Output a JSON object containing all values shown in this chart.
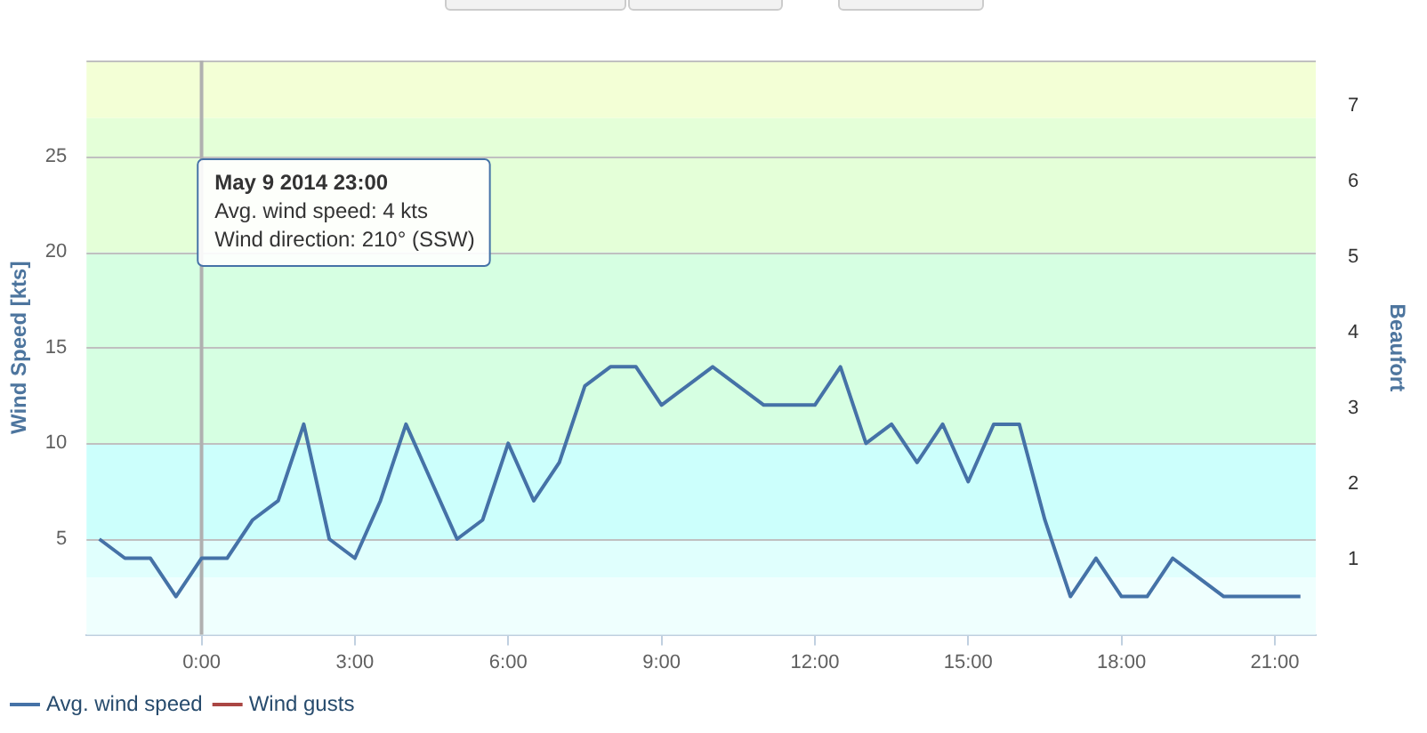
{
  "chart_data": {
    "type": "line",
    "xlabel": null,
    "ylabel": "Wind Speed [kts]",
    "y2label": "Beaufort",
    "x": [
      -2,
      -1.5,
      -1,
      -0.5,
      0,
      0.5,
      1,
      1.5,
      2,
      2.5,
      3,
      3.5,
      4,
      4.5,
      5,
      5.5,
      6,
      6.5,
      7,
      7.5,
      8,
      8.5,
      9,
      9.5,
      10,
      10.5,
      11,
      11.5,
      12,
      12.5,
      13,
      13.5,
      14,
      14.5,
      15,
      15.5,
      16,
      16.5,
      17,
      17.5,
      18,
      18.5,
      19,
      19.5,
      20,
      20.5,
      21,
      21.5
    ],
    "series": [
      {
        "name": "Avg. wind speed",
        "color": "#4572a7",
        "values": [
          5,
          4,
          4,
          2,
          4,
          4,
          6,
          7,
          11,
          5,
          4,
          7,
          11,
          8,
          5,
          6,
          10,
          7,
          9,
          13,
          14,
          14,
          12,
          13,
          14,
          13,
          12,
          12,
          12,
          14,
          10,
          11,
          9,
          11,
          8,
          11,
          11,
          6,
          2,
          4,
          2,
          2,
          4,
          3,
          2,
          2,
          2,
          2
        ]
      },
      {
        "name": "Wind gusts",
        "color": "#aa4643",
        "values": [
          null,
          null,
          null,
          null,
          null,
          null,
          null,
          null,
          null,
          null,
          null,
          null,
          null,
          null,
          null,
          null,
          null,
          null,
          null,
          null,
          null,
          null,
          null,
          null,
          null,
          null,
          null,
          null,
          null,
          null,
          null,
          null,
          null,
          null,
          null,
          null,
          null,
          null,
          null,
          null,
          null,
          null,
          null,
          null,
          null,
          null,
          null,
          null
        ]
      }
    ],
    "xlim": [
      -2.25,
      21.8
    ],
    "xticks": [
      {
        "value": 0,
        "label": "0:00"
      },
      {
        "value": 3,
        "label": "3:00"
      },
      {
        "value": 6,
        "label": "6:00"
      },
      {
        "value": 9,
        "label": "9:00"
      },
      {
        "value": 12,
        "label": "12:00"
      },
      {
        "value": 15,
        "label": "15:00"
      },
      {
        "value": 18,
        "label": "18:00"
      },
      {
        "value": 21,
        "label": "21:00"
      }
    ],
    "ylim": [
      0,
      30
    ],
    "yticks": [
      5,
      10,
      15,
      20,
      25,
      {
        "value": 30,
        "label": null
      }
    ],
    "y2lim": [
      0,
      7.6
    ],
    "y2ticks": [
      1,
      2,
      3,
      4,
      5,
      6,
      7
    ],
    "bands": [
      {
        "axis": "y",
        "from": 0,
        "to": 3,
        "color": "#effffe"
      },
      {
        "axis": "y",
        "from": 3,
        "to": 5,
        "color": "#e0fffd"
      },
      {
        "axis": "y",
        "from": 5,
        "to": 10,
        "color": "#ccfffc"
      },
      {
        "axis": "y",
        "from": 10,
        "to": 20,
        "color": "#d6ffe2"
      },
      {
        "axis": "y",
        "from": 20,
        "to": 27,
        "color": "#e4ffd8"
      },
      {
        "axis": "y",
        "from": 27,
        "to": 30,
        "color": "#f3ffd6"
      }
    ],
    "ref_lines": [
      {
        "axis": "x",
        "value": 0,
        "color": "#b0b0b0"
      }
    ],
    "annotations": [
      "May 9 2014 23:00\nAvg. wind speed: 4 kts\nWind direction: 210° (SSW)"
    ],
    "grid": "y",
    "legend": "bottom left",
    "marker": "none",
    "line_style": "solid"
  }
}
